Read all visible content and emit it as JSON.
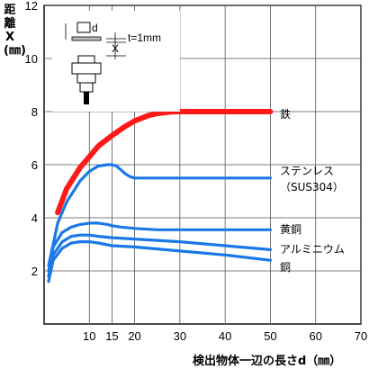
{
  "chart_data": {
    "type": "line",
    "ylabel": [
      "距",
      "離",
      "X",
      "(㎜)"
    ],
    "xlabel": "検出物体一辺の長さd（㎜）",
    "xlim": [
      0,
      70
    ],
    "ylim": [
      0,
      12
    ],
    "xticks": [
      10,
      15,
      20,
      30,
      40,
      50,
      60,
      70
    ],
    "yticks": [
      2,
      4,
      6,
      8,
      10,
      12
    ],
    "grid": true,
    "inset": {
      "d_label": "d",
      "x_label": "X",
      "t_label": "t=1mm"
    },
    "colors": {
      "iron": "#ff1a1a",
      "others": "#1a78e6"
    },
    "series": [
      {
        "name": "鉄",
        "label": "鉄",
        "color": "#ff1a1a",
        "x": [
          3,
          5,
          8,
          10,
          12,
          15,
          18,
          20,
          23,
          25,
          28,
          30,
          35,
          40,
          45,
          50
        ],
        "y": [
          4.2,
          5.1,
          5.9,
          6.3,
          6.7,
          7.1,
          7.45,
          7.65,
          7.85,
          7.93,
          7.99,
          8.0,
          8.0,
          8.0,
          8.0,
          8.0
        ]
      },
      {
        "name": "ステンレス（SUS304）",
        "label": [
          "ステンレス",
          "（SUS304）"
        ],
        "color": "#1a78e6",
        "x": [
          1,
          2,
          3,
          5,
          8,
          10,
          12,
          14,
          15,
          16,
          17,
          18,
          19,
          20,
          25,
          30,
          40,
          50
        ],
        "y": [
          2.2,
          3.0,
          3.8,
          4.6,
          5.4,
          5.75,
          5.95,
          6.0,
          6.0,
          5.95,
          5.8,
          5.65,
          5.55,
          5.5,
          5.5,
          5.5,
          5.5,
          5.5
        ]
      },
      {
        "name": "黄銅",
        "label": "黄銅",
        "color": "#1a78e6",
        "x": [
          1,
          2,
          4,
          6,
          8,
          10,
          12,
          14,
          15,
          17,
          20,
          25,
          30,
          40,
          50
        ],
        "y": [
          2.0,
          2.9,
          3.45,
          3.65,
          3.75,
          3.8,
          3.8,
          3.75,
          3.7,
          3.65,
          3.6,
          3.55,
          3.55,
          3.55,
          3.55
        ]
      },
      {
        "name": "アルミニウム",
        "label": "アルミニウム",
        "color": "#1a78e6",
        "x": [
          1,
          2,
          4,
          6,
          8,
          10,
          12,
          15,
          20,
          30,
          40,
          50
        ],
        "y": [
          1.8,
          2.6,
          3.1,
          3.3,
          3.35,
          3.35,
          3.3,
          3.25,
          3.2,
          3.1,
          2.95,
          2.8
        ]
      },
      {
        "name": "銅",
        "label": "銅",
        "color": "#1a78e6",
        "x": [
          1,
          2,
          4,
          6,
          8,
          10,
          12,
          15,
          20,
          30,
          40,
          50
        ],
        "y": [
          1.6,
          2.4,
          2.85,
          3.05,
          3.1,
          3.1,
          3.05,
          2.95,
          2.9,
          2.75,
          2.6,
          2.4
        ]
      }
    ]
  }
}
